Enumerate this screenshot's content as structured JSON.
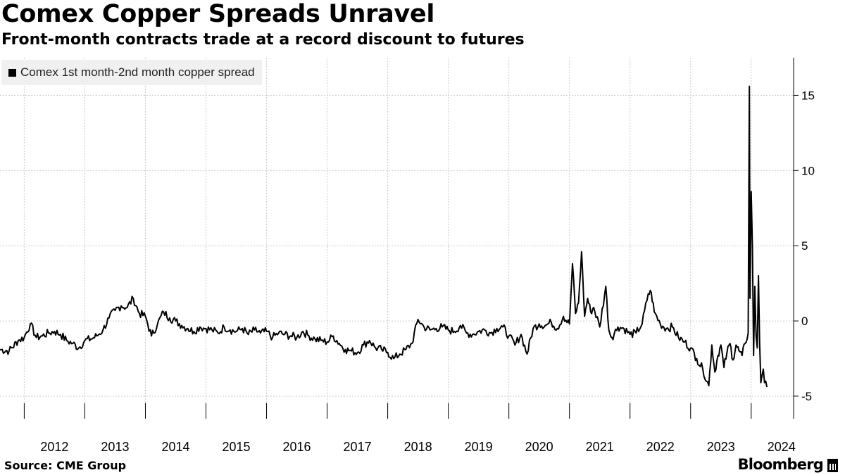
{
  "header": {
    "title": "Comex Copper Spreads Unravel",
    "subtitle": "Front-month contracts trade at a record discount to futures"
  },
  "footer": {
    "source": "Source: CME Group",
    "brand": "Bloomberg"
  },
  "colors": {
    "line": "#000000",
    "grid": "#cccccc",
    "legend_bg": "#f0f0f0"
  },
  "chart_data": {
    "type": "line",
    "title": "Comex Copper Spreads Unravel",
    "subtitle": "Front-month contracts trade at a record discount to futures",
    "xlabel": "",
    "ylabel": "",
    "legend": {
      "entries": [
        "Comex 1st month-2nd month copper spread"
      ],
      "position": "top-left"
    },
    "x_ticks": [
      "2012",
      "2013",
      "2014",
      "2015",
      "2016",
      "2017",
      "2018",
      "2019",
      "2020",
      "2021",
      "2022",
      "2023",
      "2024"
    ],
    "y_ticks": [
      "15",
      "10",
      "5",
      "0",
      "-5"
    ],
    "xlim": [
      2011.6,
      2024.7
    ],
    "ylim": [
      -6.5,
      17.5
    ],
    "grid": true,
    "series": [
      {
        "name": "Comex 1st month-2nd month copper spread",
        "x": [
          2011.6,
          2011.75,
          2011.9,
          2012.0,
          2012.1,
          2012.2,
          2012.3,
          2012.4,
          2012.5,
          2012.6,
          2012.7,
          2012.8,
          2012.9,
          2013.0,
          2013.1,
          2013.2,
          2013.3,
          2013.4,
          2013.5,
          2013.6,
          2013.7,
          2013.8,
          2013.9,
          2014.0,
          2014.1,
          2014.2,
          2014.3,
          2014.4,
          2014.5,
          2014.6,
          2014.7,
          2014.8,
          2014.9,
          2015.0,
          2015.1,
          2015.2,
          2015.3,
          2015.4,
          2015.5,
          2015.6,
          2015.7,
          2015.8,
          2015.9,
          2016.0,
          2016.1,
          2016.2,
          2016.3,
          2016.4,
          2016.5,
          2016.6,
          2016.7,
          2016.8,
          2016.9,
          2017.0,
          2017.1,
          2017.2,
          2017.3,
          2017.4,
          2017.5,
          2017.6,
          2017.7,
          2017.8,
          2017.9,
          2018.0,
          2018.1,
          2018.2,
          2018.3,
          2018.4,
          2018.5,
          2018.6,
          2018.7,
          2018.8,
          2018.9,
          2019.0,
          2019.1,
          2019.2,
          2019.3,
          2019.4,
          2019.5,
          2019.6,
          2019.7,
          2019.8,
          2019.9,
          2020.0,
          2020.1,
          2020.2,
          2020.3,
          2020.4,
          2020.5,
          2020.6,
          2020.7,
          2020.8,
          2020.9,
          2021.0,
          2021.05,
          2021.1,
          2021.15,
          2021.2,
          2021.25,
          2021.3,
          2021.35,
          2021.4,
          2021.5,
          2021.6,
          2021.65,
          2021.7,
          2021.8,
          2021.9,
          2022.0,
          2022.1,
          2022.2,
          2022.3,
          2022.35,
          2022.4,
          2022.5,
          2022.6,
          2022.7,
          2022.8,
          2022.9,
          2023.0,
          2023.1,
          2023.2,
          2023.3,
          2023.35,
          2023.4,
          2023.45,
          2023.5,
          2023.55,
          2023.6,
          2023.65,
          2023.7,
          2023.75,
          2023.8,
          2023.85,
          2023.9,
          2023.95,
          2023.97,
          2023.98,
          2024.0,
          2024.02,
          2024.04,
          2024.06,
          2024.08,
          2024.1,
          2024.12,
          2024.14,
          2024.16,
          2024.18,
          2024.2,
          2024.22,
          2024.24,
          2024.26
        ],
        "y": [
          -1.9,
          -2.0,
          -1.3,
          -1.1,
          -0.2,
          -1.1,
          -1.0,
          -0.8,
          -0.7,
          -0.9,
          -1.3,
          -1.5,
          -1.8,
          -1.3,
          -1.2,
          -1.0,
          -0.6,
          0.2,
          0.7,
          1.0,
          0.9,
          1.5,
          0.5,
          0.3,
          -1.0,
          -0.2,
          0.6,
          0.2,
          0.0,
          -0.3,
          -0.5,
          -0.7,
          -0.4,
          -0.5,
          -0.6,
          -0.8,
          -0.4,
          -0.6,
          -0.7,
          -0.5,
          -0.9,
          -0.6,
          -0.8,
          -0.7,
          -1.1,
          -0.8,
          -0.9,
          -1.0,
          -1.1,
          -0.7,
          -1.0,
          -1.2,
          -1.3,
          -1.4,
          -1.0,
          -1.5,
          -1.9,
          -2.0,
          -2.1,
          -1.6,
          -1.3,
          -1.8,
          -1.9,
          -2.1,
          -2.5,
          -2.2,
          -1.9,
          -1.5,
          0.1,
          -0.4,
          -0.6,
          -0.5,
          -0.4,
          -0.6,
          -0.7,
          -0.3,
          -0.8,
          -0.9,
          -0.7,
          -0.6,
          -0.8,
          -0.5,
          -0.4,
          -1.0,
          -1.6,
          -0.9,
          -2.2,
          -0.5,
          -0.2,
          -0.3,
          -0.1,
          -0.5,
          0.3,
          -0.2,
          3.8,
          0.5,
          1.2,
          4.6,
          0.3,
          1.5,
          0.6,
          0.9,
          -0.4,
          2.3,
          -0.6,
          -1.1,
          -0.4,
          -0.5,
          -0.9,
          -0.8,
          -0.2,
          1.8,
          1.9,
          0.6,
          -0.2,
          -0.5,
          -0.4,
          -1.1,
          -1.4,
          -1.8,
          -2.5,
          -3.2,
          -4.3,
          -1.6,
          -3.4,
          -2.3,
          -1.6,
          -3.1,
          -2.1,
          -1.5,
          -2.6,
          -1.6,
          -2.0,
          -2.3,
          -1.5,
          -0.8,
          15.6,
          1.5,
          8.6,
          5.0,
          -2.3,
          2.3,
          -1.0,
          -1.8,
          3.0,
          -1.5,
          -4.1,
          -3.6,
          -3.2,
          -4.1,
          -4.0,
          -4.4
        ]
      }
    ]
  }
}
